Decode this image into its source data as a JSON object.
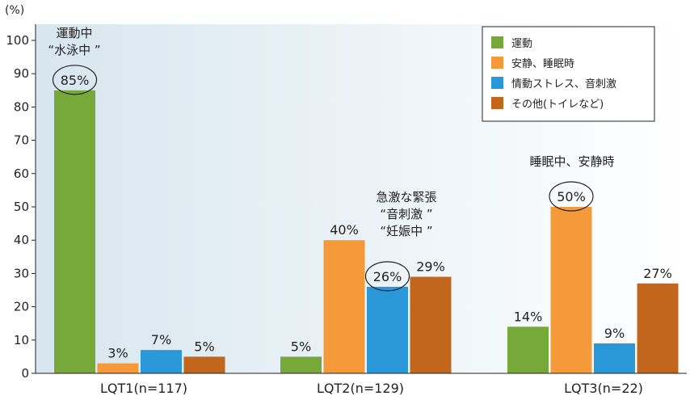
{
  "chart_data": {
    "type": "bar",
    "ylabel": "(%)",
    "ylim": [
      0,
      100
    ],
    "yticks": [
      "0",
      "10",
      "20",
      "30",
      "40",
      "50",
      "60",
      "70",
      "80",
      "90",
      "100"
    ],
    "categories": [
      "LQT1(n=117)",
      "LQT2(n=129)",
      "LQT3(n=22)"
    ],
    "series": [
      {
        "name": "運動",
        "color": "#76a83a",
        "values": [
          85,
          5,
          14
        ],
        "labels": [
          "85%",
          "5%",
          "14%"
        ]
      },
      {
        "name": "安静、睡眠時",
        "color": "#f59a3a",
        "values": [
          3,
          40,
          50
        ],
        "labels": [
          "3%",
          "40%",
          "50%"
        ]
      },
      {
        "name": "情動ストレス、音刺激",
        "color": "#2a97d9",
        "values": [
          7,
          26,
          9
        ],
        "labels": [
          "7%",
          "26%",
          "9%"
        ]
      },
      {
        "name": "その他(トイレなど)",
        "color": "#c2651d",
        "values": [
          5,
          29,
          27
        ],
        "labels": [
          "5%",
          "29%",
          "27%"
        ]
      }
    ],
    "circled": [
      "85%",
      "26%",
      "50%"
    ],
    "annotations": [
      {
        "lines": [
          "運動中",
          "“水泳中 ”"
        ]
      },
      {
        "lines": [
          "急激な緊張",
          "“音刺激 ”",
          "“妊娠中 ”"
        ]
      },
      {
        "lines": [
          "睡眠中、安静時"
        ]
      }
    ],
    "legend_position": "top-right",
    "background_gradient": [
      "#d7e6ef",
      "#ffffff"
    ]
  }
}
